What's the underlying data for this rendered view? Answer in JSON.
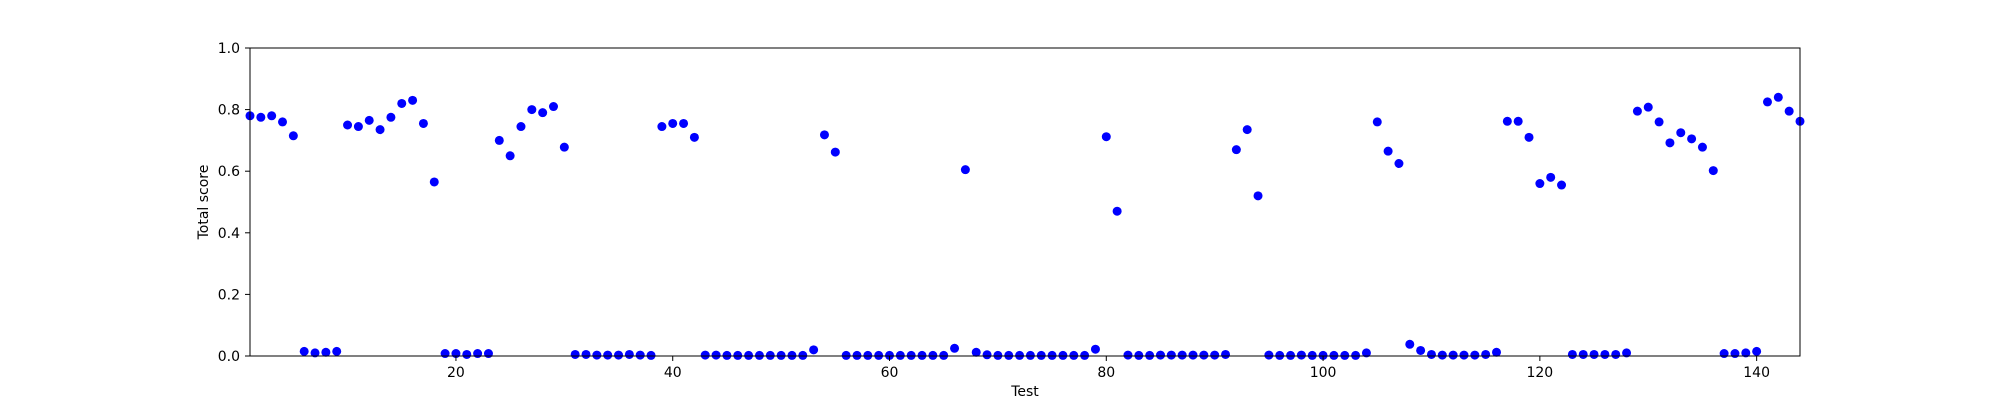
{
  "chart_data": {
    "type": "scatter",
    "title": "",
    "xlabel": "Test",
    "ylabel": "Total score",
    "xlim": [
      1,
      144
    ],
    "ylim": [
      0.0,
      1.0
    ],
    "x_ticks": [
      20,
      40,
      60,
      80,
      100,
      120,
      140
    ],
    "y_ticks": [
      "0.0",
      "0.2",
      "0.4",
      "0.6",
      "0.8",
      "1.0"
    ],
    "grid": false,
    "marker_color": "#0000ff",
    "series": [
      {
        "x": [
          1,
          2,
          3,
          4,
          5,
          6,
          7,
          8,
          9,
          10,
          11,
          12,
          13,
          14,
          15,
          16,
          17,
          18,
          19,
          20,
          21,
          22,
          23,
          24,
          25,
          26,
          27,
          28,
          29,
          30,
          31,
          32,
          33,
          34,
          35,
          36,
          37,
          38,
          39,
          40,
          41,
          42,
          43,
          44,
          45,
          46,
          47,
          48,
          49,
          50,
          51,
          52,
          53,
          54,
          55,
          56,
          57,
          58,
          59,
          60,
          61,
          62,
          63,
          64,
          65,
          66,
          67,
          68,
          69,
          70,
          71,
          72,
          73,
          74,
          75,
          76,
          77,
          78,
          79,
          80,
          81,
          82,
          83,
          84,
          85,
          86,
          87,
          88,
          89,
          90,
          91,
          92,
          93,
          94,
          95,
          96,
          97,
          98,
          99,
          100,
          101,
          102,
          103,
          104,
          105,
          106,
          107,
          108,
          109,
          110,
          111,
          112,
          113,
          114,
          115,
          116,
          117,
          118,
          119,
          120,
          121,
          122,
          123,
          124,
          125,
          126,
          127,
          128,
          129,
          130,
          131,
          132,
          133,
          134,
          135,
          136,
          137,
          138,
          139,
          140,
          141,
          142,
          143,
          144
        ],
        "y": [
          0.78,
          0.775,
          0.78,
          0.76,
          0.715,
          0.015,
          0.01,
          0.012,
          0.015,
          0.75,
          0.745,
          0.765,
          0.735,
          0.775,
          0.82,
          0.83,
          0.755,
          0.565,
          0.008,
          0.008,
          0.005,
          0.008,
          0.008,
          0.7,
          0.65,
          0.745,
          0.8,
          0.79,
          0.81,
          0.678,
          0.005,
          0.005,
          0.003,
          0.003,
          0.003,
          0.005,
          0.003,
          0.002,
          0.745,
          0.755,
          0.755,
          0.71,
          0.003,
          0.003,
          0.002,
          0.002,
          0.002,
          0.002,
          0.002,
          0.002,
          0.002,
          0.002,
          0.02,
          0.718,
          0.662,
          0.002,
          0.002,
          0.002,
          0.002,
          0.002,
          0.002,
          0.002,
          0.002,
          0.002,
          0.002,
          0.025,
          0.605,
          0.012,
          0.004,
          0.002,
          0.002,
          0.002,
          0.002,
          0.002,
          0.002,
          0.002,
          0.002,
          0.002,
          0.022,
          0.712,
          0.47,
          0.003,
          0.002,
          0.002,
          0.003,
          0.003,
          0.003,
          0.003,
          0.003,
          0.003,
          0.005,
          0.67,
          0.735,
          0.52,
          0.003,
          0.002,
          0.002,
          0.003,
          0.002,
          0.002,
          0.002,
          0.002,
          0.002,
          0.01,
          0.76,
          0.665,
          0.625,
          0.038,
          0.018,
          0.005,
          0.003,
          0.003,
          0.003,
          0.003,
          0.005,
          0.012,
          0.762,
          0.762,
          0.71,
          0.56,
          0.58,
          0.555,
          0.005,
          0.005,
          0.005,
          0.005,
          0.005,
          0.01,
          0.795,
          0.808,
          0.76,
          0.692,
          0.725,
          0.705,
          0.678,
          0.602,
          0.008,
          0.008,
          0.01,
          0.015,
          0.825,
          0.84,
          0.795,
          0.762
        ]
      }
    ]
  }
}
